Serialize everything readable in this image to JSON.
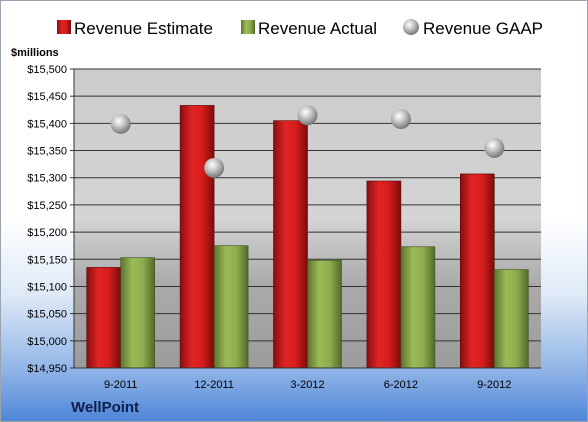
{
  "chart_data": {
    "type": "bar",
    "units_label": "$millions",
    "company": "WellPoint",
    "categories": [
      "9-2011",
      "12-2011",
      "3-2012",
      "6-2012",
      "9-2012"
    ],
    "series": [
      {
        "name": "Revenue Estimate",
        "kind": "bar",
        "color": "#cc1a1a",
        "values": [
          15135,
          15433,
          15405,
          15294,
          15307
        ]
      },
      {
        "name": "Revenue Actual",
        "kind": "bar",
        "color": "#8aa84a",
        "values": [
          15153,
          15175,
          15148,
          15173,
          15131
        ]
      },
      {
        "name": "Revenue GAAP",
        "kind": "scatter",
        "color": "#b8b8b8",
        "values": [
          15399,
          15318,
          15415,
          15408,
          15355
        ]
      }
    ],
    "ylim": [
      14950,
      15500
    ],
    "yticks": [
      "$14,950",
      "$15,000",
      "$15,050",
      "$15,100",
      "$15,150",
      "$15,200",
      "$15,250",
      "$15,300",
      "$15,350",
      "$15,400",
      "$15,450",
      "$15,500"
    ],
    "ytick_values": [
      14950,
      15000,
      15050,
      15100,
      15150,
      15200,
      15250,
      15300,
      15350,
      15400,
      15450,
      15500
    ],
    "grid": true,
    "legend": "top"
  }
}
